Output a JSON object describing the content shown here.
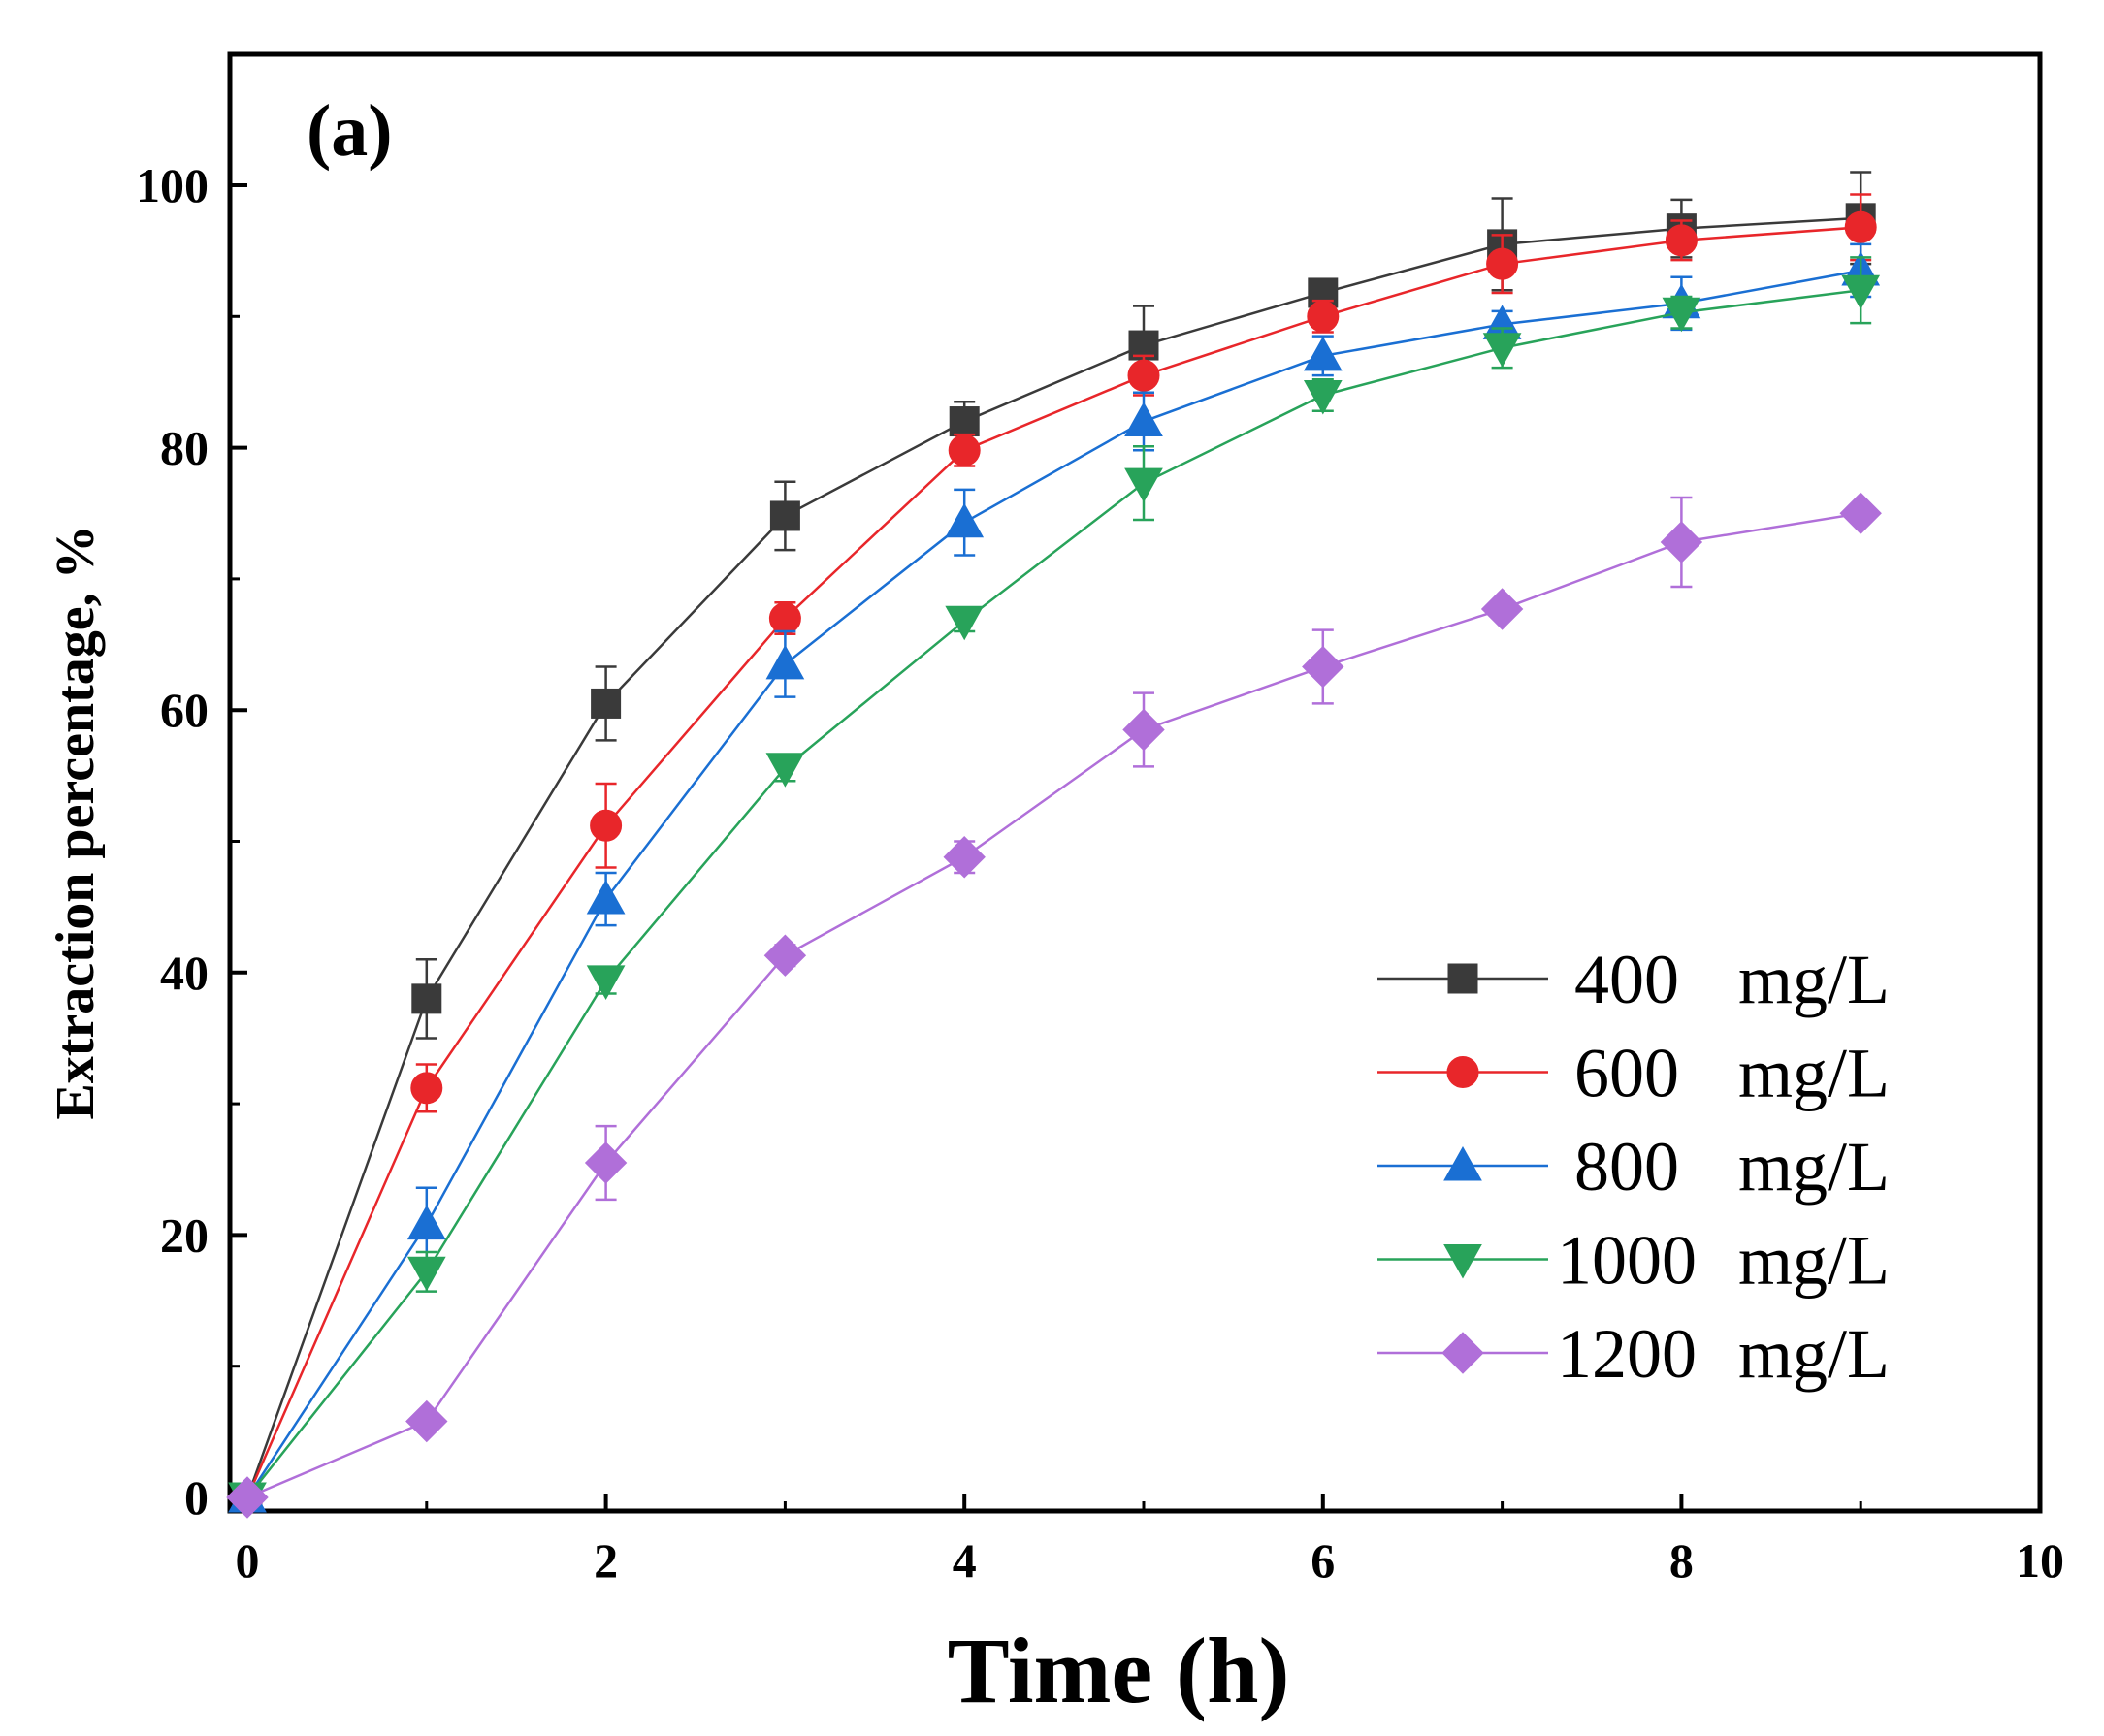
{
  "chart_data": {
    "type": "line",
    "panel_label": "(a)",
    "xlabel": "Time (h)",
    "ylabel": "Extraction percentage, %",
    "xlim": [
      0,
      10
    ],
    "ylim": [
      0,
      110
    ],
    "x_ticks": [
      0,
      2,
      4,
      6,
      8,
      10
    ],
    "y_ticks": [
      0,
      20,
      40,
      60,
      80,
      100
    ],
    "grid": false,
    "legend_position": "bottom-right",
    "x": [
      0,
      1,
      2,
      3,
      4,
      5,
      6,
      7,
      8,
      9
    ],
    "series": [
      {
        "name": "400",
        "unit": "mg/L",
        "color": "#3a3a3a",
        "marker": "square",
        "values": [
          0,
          38,
          60.5,
          74.8,
          82,
          87.8,
          91.8,
          95.5,
          96.7,
          97.5
        ],
        "errors": [
          0,
          3,
          2.8,
          2.6,
          1.5,
          3,
          1,
          3.5,
          2.2,
          3.5
        ]
      },
      {
        "name": "600",
        "unit": "mg/L",
        "color": "#e8262a",
        "marker": "circle",
        "values": [
          0,
          31.2,
          51.2,
          67,
          79.8,
          85.5,
          90,
          94,
          95.8,
          96.8
        ],
        "errors": [
          0,
          1.8,
          3.2,
          1.2,
          1.2,
          1.5,
          1.2,
          2.2,
          1.5,
          2.5
        ]
      },
      {
        "name": "800",
        "unit": "mg/L",
        "color": "#1a6fd3",
        "marker": "triangle-up",
        "values": [
          0,
          20.8,
          45.6,
          63.5,
          74.3,
          82,
          87,
          89.4,
          91,
          93.5
        ],
        "errors": [
          0,
          2.8,
          2,
          2.5,
          2.5,
          2.2,
          1.5,
          1,
          2,
          2
        ]
      },
      {
        "name": "1000",
        "unit": "mg/L",
        "color": "#28a35a",
        "marker": "triangle-down",
        "values": [
          0,
          17.2,
          39.4,
          55.6,
          66.8,
          77.3,
          84,
          87.6,
          90.3,
          92
        ],
        "errors": [
          0,
          1.5,
          1,
          1,
          0.8,
          2.8,
          1.2,
          1.5,
          1.2,
          2.5
        ]
      },
      {
        "name": "1200",
        "unit": "mg/L",
        "color": "#b06fd9",
        "marker": "diamond",
        "values": [
          0,
          5.8,
          25.5,
          41.3,
          48.8,
          58.5,
          63.3,
          67.7,
          72.8,
          75
        ],
        "errors": [
          0,
          0.6,
          2.8,
          0.8,
          1.2,
          2.8,
          2.8,
          0.6,
          3.4,
          0.5
        ]
      }
    ]
  }
}
